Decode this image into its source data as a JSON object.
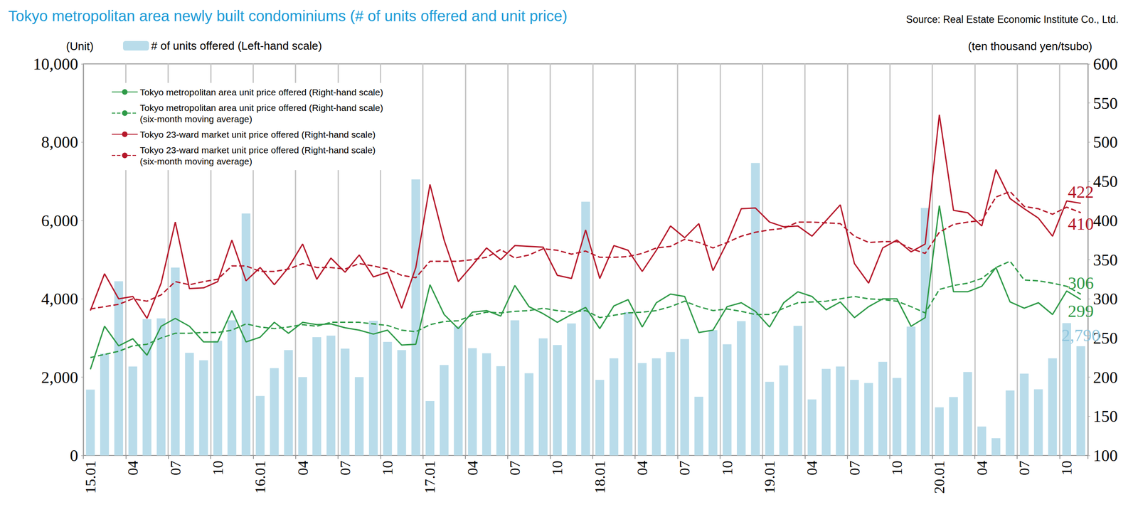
{
  "chart_data": {
    "type": "bar",
    "title": "Tokyo metropolitan area newly built condominiums (# of units offered and unit price)",
    "subtitle": "Source: Real Estate Economic Institute Co., Ltd.",
    "y_label": "(Unit)",
    "y2_label": "(ten thousand yen/tsubo)",
    "categories": [
      "15.01",
      null,
      null,
      "04",
      null,
      null,
      "07",
      null,
      null,
      "10",
      null,
      null,
      "16.01",
      null,
      null,
      "04",
      null,
      null,
      "07",
      null,
      null,
      "10",
      null,
      null,
      "17.01",
      null,
      null,
      "04",
      null,
      null,
      "07",
      null,
      null,
      "10",
      null,
      null,
      "18.01",
      null,
      null,
      "04",
      null,
      null,
      "07",
      null,
      null,
      "10",
      null,
      null,
      "19.01",
      null,
      null,
      "04",
      null,
      null,
      "07",
      null,
      null,
      "10",
      null,
      null,
      "20.01",
      null,
      null,
      "04",
      null,
      null,
      "07",
      null,
      null,
      "10",
      null
    ],
    "ylim": [
      0,
      10000
    ],
    "yticks": [
      0,
      {
        "value": 2000,
        "label": "2,000"
      },
      {
        "value": 4000,
        "label": "4,000"
      },
      {
        "value": 6000,
        "label": "6,000"
      },
      {
        "value": 8000,
        "label": "8,000"
      },
      {
        "value": 10000,
        "label": "10,000"
      }
    ],
    "y2lim": [
      100,
      600
    ],
    "y2ticks": [
      100,
      150,
      200,
      250,
      300,
      350,
      400,
      450,
      500,
      550,
      600
    ],
    "grid": "x",
    "legend": "top-left",
    "series": [
      {
        "name": "# of units offered (Left-hand scale)",
        "type": "bar",
        "color": "#b9dcea",
        "values": [
          1680,
          2600,
          4450,
          2270,
          3480,
          3500,
          4800,
          2620,
          2430,
          2930,
          3450,
          6180,
          1520,
          2230,
          2690,
          2000,
          3020,
          3060,
          2730,
          2000,
          3440,
          2900,
          2690,
          7050,
          1390,
          2310,
          3300,
          2740,
          2610,
          2280,
          3450,
          2100,
          2990,
          2820,
          3370,
          6480,
          1930,
          2480,
          3660,
          2360,
          2480,
          2640,
          2970,
          1500,
          3200,
          2840,
          3430,
          7470,
          1880,
          2300,
          3310,
          1430,
          2210,
          2270,
          1930,
          1850,
          2390,
          1980,
          3290,
          6320,
          1230,
          1490,
          2130,
          740,
          440,
          1660,
          2090,
          1690,
          2480,
          3380,
          2790
        ],
        "value_labels": [
          null,
          null,
          null,
          null,
          null,
          null,
          null,
          null,
          null,
          null,
          null,
          null,
          null,
          null,
          null,
          null,
          null,
          null,
          null,
          null,
          null,
          null,
          null,
          null,
          null,
          null,
          null,
          null,
          null,
          null,
          null,
          null,
          null,
          null,
          null,
          null,
          null,
          null,
          null,
          null,
          null,
          null,
          null,
          null,
          null,
          null,
          null,
          null,
          null,
          null,
          null,
          null,
          null,
          null,
          null,
          null,
          null,
          null,
          null,
          null,
          null,
          null,
          null,
          null,
          null,
          null,
          null,
          null,
          null,
          null,
          "2,790"
        ]
      },
      {
        "name": "Tokyo metropolitan area unit price offered (Right-hand scale)",
        "type": "line",
        "axis": "y2",
        "color": "#2e9a47",
        "line_style": "solid",
        "values": [
          210,
          265,
          240,
          249,
          228,
          265,
          275,
          265,
          245,
          245,
          285,
          245,
          251,
          270,
          256,
          270,
          267,
          268,
          263,
          260,
          255,
          260,
          241,
          242,
          318,
          280,
          262,
          283,
          285,
          278,
          317,
          290,
          281,
          270,
          280,
          289,
          262,
          291,
          299,
          264,
          295,
          306,
          303,
          257,
          260,
          290,
          295,
          284,
          264,
          295,
          309,
          303,
          286,
          296,
          276,
          290,
          300,
          300,
          265,
          276,
          419,
          309,
          309,
          316,
          340,
          296,
          288,
          295,
          280,
          310,
          299
        ],
        "value_labels": [
          null,
          null,
          null,
          null,
          null,
          null,
          null,
          null,
          null,
          null,
          null,
          null,
          null,
          null,
          null,
          null,
          null,
          null,
          null,
          null,
          null,
          null,
          null,
          null,
          null,
          null,
          null,
          null,
          null,
          null,
          null,
          null,
          null,
          null,
          null,
          null,
          null,
          null,
          null,
          null,
          null,
          null,
          null,
          null,
          null,
          null,
          null,
          null,
          null,
          null,
          null,
          null,
          null,
          null,
          null,
          null,
          null,
          null,
          null,
          null,
          null,
          null,
          null,
          null,
          null,
          null,
          null,
          null,
          null,
          null,
          "299"
        ]
      },
      {
        "name": "Tokyo metropolitan area unit price offered (Right-hand scale)\n(six-month moving average)",
        "type": "line",
        "axis": "y2",
        "color": "#2e9a47",
        "line_style": "dashed",
        "values": [
          225,
          229,
          233,
          240,
          242,
          250,
          256,
          256,
          257,
          257,
          260,
          268,
          264,
          262,
          264,
          267,
          265,
          270,
          270,
          270,
          268,
          266,
          260,
          258,
          267,
          271,
          272,
          279,
          283,
          282,
          284,
          285,
          288,
          285,
          283,
          285,
          276,
          279,
          282,
          283,
          285,
          290,
          297,
          290,
          285,
          287,
          284,
          280,
          280,
          288,
          295,
          296,
          297,
          300,
          303,
          300,
          299,
          297,
          290,
          282,
          312,
          317,
          320,
          326,
          340,
          348,
          324,
          323,
          320,
          316,
          306
        ],
        "value_labels": [
          null,
          null,
          null,
          null,
          null,
          null,
          null,
          null,
          null,
          null,
          null,
          null,
          null,
          null,
          null,
          null,
          null,
          null,
          null,
          null,
          null,
          null,
          null,
          null,
          null,
          null,
          null,
          null,
          null,
          null,
          null,
          null,
          null,
          null,
          null,
          null,
          null,
          null,
          null,
          null,
          null,
          null,
          null,
          null,
          null,
          null,
          null,
          null,
          null,
          null,
          null,
          null,
          null,
          null,
          null,
          null,
          null,
          null,
          null,
          null,
          null,
          null,
          null,
          null,
          null,
          null,
          null,
          null,
          null,
          null,
          "306"
        ]
      },
      {
        "name": "Tokyo 23-ward market unit price offered (Right-hand scale)",
        "type": "line",
        "axis": "y2",
        "color": "#b5172a",
        "line_style": "solid",
        "values": [
          285,
          332,
          300,
          303,
          275,
          320,
          398,
          313,
          314,
          322,
          375,
          323,
          340,
          318,
          340,
          370,
          325,
          352,
          334,
          356,
          328,
          334,
          288,
          340,
          446,
          375,
          322,
          343,
          365,
          350,
          368,
          367,
          366,
          330,
          326,
          388,
          326,
          368,
          362,
          335,
          362,
          393,
          378,
          396,
          336,
          372,
          415,
          416,
          398,
          392,
          393,
          380,
          400,
          420,
          345,
          320,
          365,
          375,
          360,
          370,
          535,
          413,
          410,
          393,
          465,
          428,
          415,
          403,
          380,
          425,
          422
        ],
        "value_labels": [
          null,
          null,
          null,
          null,
          null,
          null,
          null,
          null,
          null,
          null,
          null,
          null,
          null,
          null,
          null,
          null,
          null,
          null,
          null,
          null,
          null,
          null,
          null,
          null,
          null,
          null,
          null,
          null,
          null,
          null,
          null,
          null,
          null,
          null,
          null,
          null,
          null,
          null,
          null,
          null,
          null,
          null,
          null,
          null,
          null,
          null,
          null,
          null,
          null,
          null,
          null,
          null,
          null,
          null,
          null,
          null,
          null,
          null,
          null,
          null,
          null,
          null,
          null,
          null,
          null,
          null,
          null,
          null,
          null,
          null,
          "422"
        ]
      },
      {
        "name": "Tokyo 23-ward market unit price offered (Right-hand scale)\n(six-month moving average)",
        "type": "line",
        "axis": "y2",
        "color": "#b5172a",
        "line_style": "dashed",
        "values": [
          287,
          290,
          293,
          300,
          297,
          305,
          322,
          318,
          322,
          325,
          342,
          342,
          335,
          335,
          338,
          345,
          340,
          340,
          338,
          345,
          342,
          338,
          330,
          327,
          348,
          348,
          348,
          350,
          353,
          363,
          352,
          356,
          364,
          362,
          357,
          361,
          353,
          353,
          354,
          358,
          365,
          367,
          376,
          372,
          365,
          372,
          380,
          385,
          388,
          390,
          398,
          398,
          397,
          396,
          380,
          372,
          373,
          373,
          364,
          358,
          385,
          395,
          398,
          400,
          430,
          437,
          418,
          415,
          408,
          417,
          410
        ],
        "value_labels": [
          null,
          null,
          null,
          null,
          null,
          null,
          null,
          null,
          null,
          null,
          null,
          null,
          null,
          null,
          null,
          null,
          null,
          null,
          null,
          null,
          null,
          null,
          null,
          null,
          null,
          null,
          null,
          null,
          null,
          null,
          null,
          null,
          null,
          null,
          null,
          null,
          null,
          null,
          null,
          null,
          null,
          null,
          null,
          null,
          null,
          null,
          null,
          null,
          null,
          null,
          null,
          null,
          null,
          null,
          null,
          null,
          null,
          null,
          null,
          null,
          null,
          null,
          null,
          null,
          null,
          null,
          null,
          null,
          null,
          null,
          "410"
        ]
      }
    ]
  }
}
